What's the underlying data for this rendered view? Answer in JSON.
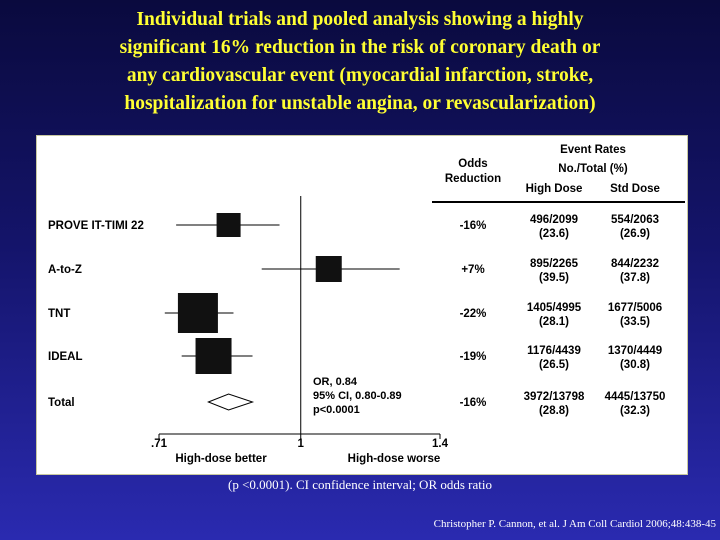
{
  "title_lines": [
    "Individual trials and pooled analysis showing a highly",
    "significant 16% reduction in the risk of coronary death or",
    "any cardiovascular event (myocardial infarction, stroke,",
    "hospitalization for unstable angina, or revascularization)"
  ],
  "footnote": "(p <0.0001). CI  confidence interval; OR  odds ratio",
  "citation": "Christopher P. Cannon, et al. J Am Coll Cardiol 2006;48:438-45",
  "chart_data": {
    "type": "forest",
    "x_scale": "log",
    "xlim": [
      0.71,
      1.4
    ],
    "x_ticks": [
      ".71",
      "1",
      "1.4"
    ],
    "x_tick_values": [
      0.71,
      1,
      1.4
    ],
    "x_left_label": "High-dose better",
    "x_right_label": "High-dose worse",
    "headers": {
      "event_rates": "Event Rates",
      "no_total": "No./Total (%)",
      "odds_reduction_line1": "Odds",
      "odds_reduction_line2": "Reduction",
      "high_dose": "High Dose",
      "std_dose": "Std Dose"
    },
    "studies": [
      {
        "name": "PROVE IT-TIMI 22",
        "or": 0.84,
        "ci": [
          0.74,
          0.95
        ],
        "odds_reduction": "-16%",
        "high_dose": [
          "496/2099",
          "(23.6)"
        ],
        "std_dose": [
          "554/2063",
          "(26.9)"
        ]
      },
      {
        "name": "A-to-Z",
        "or": 1.07,
        "ci": [
          0.91,
          1.27
        ],
        "odds_reduction": "+7%",
        "high_dose": [
          "895/2265",
          "(39.5)"
        ],
        "std_dose": [
          "844/2232",
          "(37.8)"
        ]
      },
      {
        "name": "TNT",
        "or": 0.78,
        "ci": [
          0.72,
          0.85
        ],
        "odds_reduction": "-22%",
        "high_dose": [
          "1405/4995",
          "(28.1)"
        ],
        "std_dose": [
          "1677/5006",
          "(33.5)"
        ]
      },
      {
        "name": "IDEAL",
        "or": 0.81,
        "ci": [
          0.75,
          0.89
        ],
        "odds_reduction": "-19%",
        "high_dose": [
          "1176/4439",
          "(26.5)"
        ],
        "std_dose": [
          "1370/4449",
          "(30.8)"
        ]
      }
    ],
    "total": {
      "name": "Total",
      "or": 0.84,
      "ci": [
        0.8,
        0.89
      ],
      "odds_reduction": "-16%",
      "high_dose": [
        "3972/13798",
        "(28.8)"
      ],
      "std_dose": [
        "4445/13750",
        "(32.3)"
      ],
      "annotation": [
        "OR, 0.84",
        "95% CI, 0.80-0.89",
        "p<0.0001"
      ]
    }
  }
}
